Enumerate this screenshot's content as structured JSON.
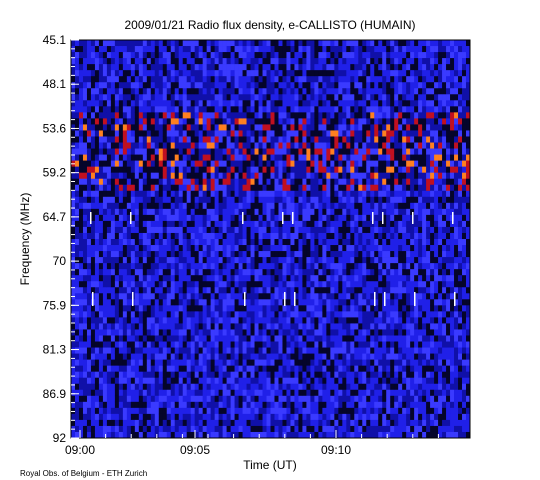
{
  "chart_data": {
    "type": "spectrogram",
    "title": "2009/01/21  Radio flux density, e-CALLISTO (HUMAIN)",
    "x_label": "Time (UT)",
    "y_label": "Frequency (MHz)",
    "xticks": [
      "09:00",
      "09:05",
      "09:10"
    ],
    "yticks": [
      45.1,
      48.1,
      53.6,
      59.2,
      64.7,
      70.0,
      75.9,
      81.3,
      86.9,
      92.0
    ],
    "credit": "Royal Obs. of Belgium - ETH Zurich"
  }
}
